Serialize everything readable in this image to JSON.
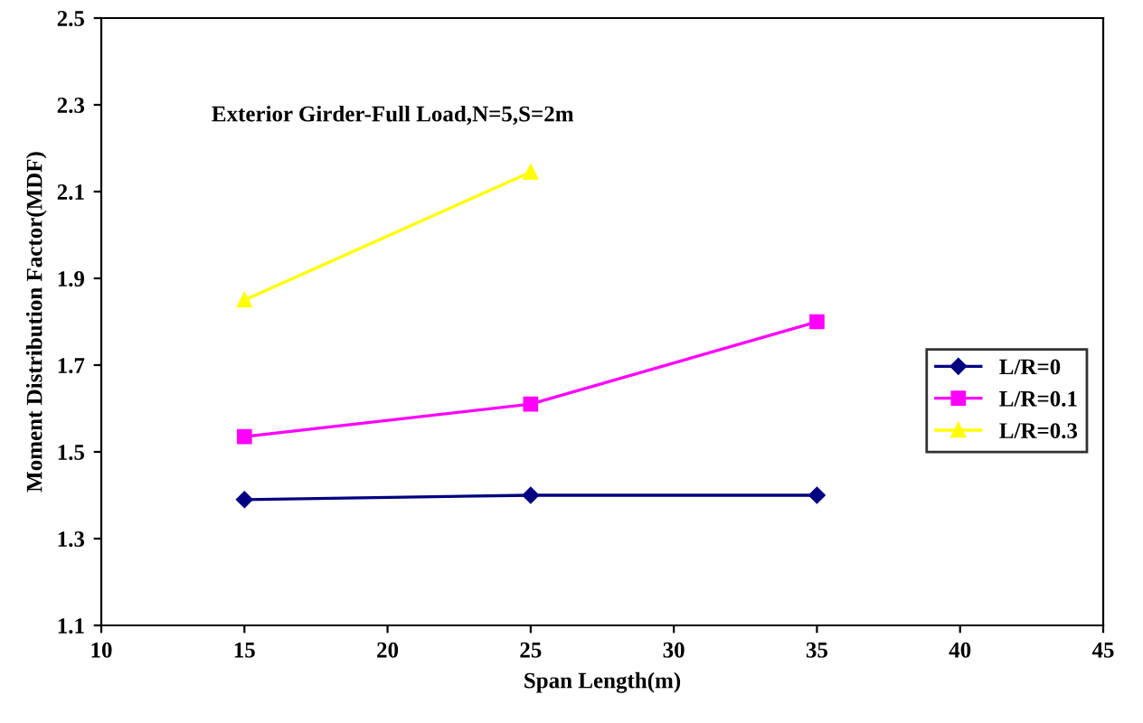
{
  "chart_data": {
    "type": "line",
    "xlabel": "Span Length(m)",
    "ylabel": "Moment Distribution Factor(MDF)",
    "annotations": [
      "Exterior Girder-Full Load,N=5,S=2m"
    ],
    "x": [
      15,
      25,
      35
    ],
    "series": [
      {
        "name": "L/R=0",
        "color": "#000080",
        "marker": "diamond",
        "values": [
          1.39,
          1.4,
          1.4
        ]
      },
      {
        "name": "L/R=0.1",
        "color": "#ff00ff",
        "marker": "square",
        "values": [
          1.535,
          1.61,
          1.8
        ]
      },
      {
        "name": "L/R=0.3",
        "color": "#ffff00",
        "marker": "triangle",
        "values": [
          1.85,
          2.145,
          null
        ]
      }
    ],
    "xlim": [
      10,
      45
    ],
    "xticks": [
      10,
      15,
      20,
      25,
      30,
      35,
      40,
      45
    ],
    "ylim": [
      1.1,
      2.5
    ],
    "yticks": [
      1.1,
      1.3,
      1.5,
      1.7,
      1.9,
      2.1,
      2.3,
      2.5
    ],
    "grid": false,
    "legend": "right",
    "line_style": "solid"
  }
}
